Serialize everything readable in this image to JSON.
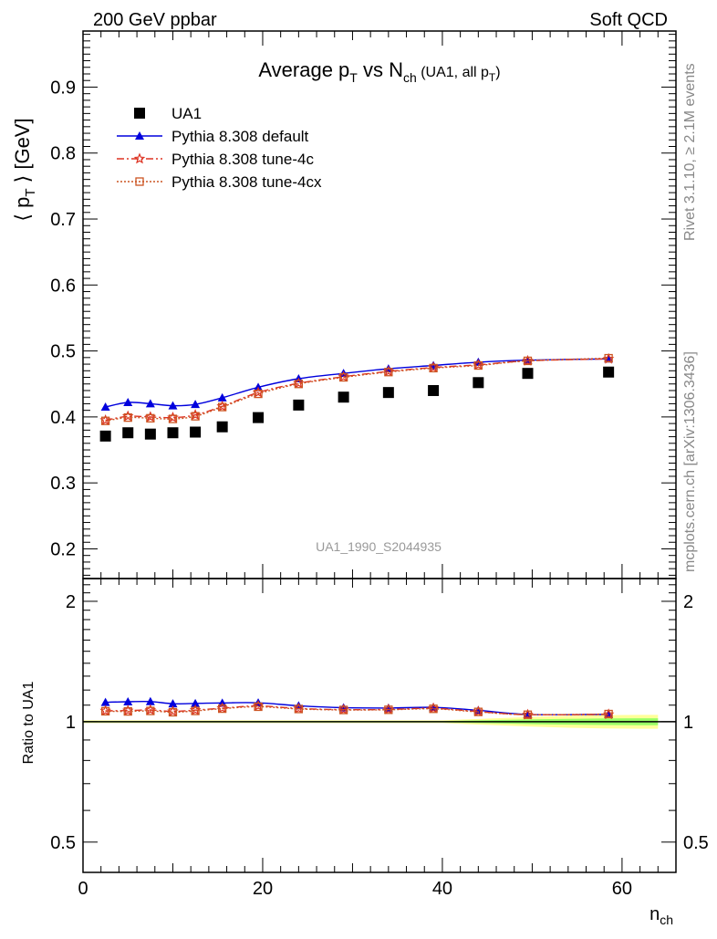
{
  "header": {
    "left": "200 GeV ppbar",
    "right": "Soft QCD"
  },
  "side_text": {
    "rivet": "Rivet 3.1.10, ≥ 2.1M events",
    "mcplots": "mcplots.cern.ch [arXiv:1306.3436]"
  },
  "watermark": "UA1_1990_S2044935",
  "chart_data": [
    {
      "type": "scatter",
      "panel": "main",
      "title_parts": [
        "Average p",
        "T",
        " vs N",
        "ch",
        " (UA1, all p",
        "T",
        ")"
      ],
      "ylabel_parts": [
        "⟨ p",
        "T",
        " ⟩ [GeV]"
      ],
      "xlim": [
        0,
        66
      ],
      "ylim": [
        0.155,
        0.985
      ],
      "yticks": [
        0.2,
        0.3,
        0.4,
        0.5,
        0.6,
        0.7,
        0.8,
        0.9
      ],
      "ytick_labels": [
        "0.2",
        "0.3",
        "0.4",
        "0.5",
        "0.6",
        "0.7",
        "0.8",
        "0.9"
      ],
      "legend_position": "top-left",
      "series": [
        {
          "name": "UA1",
          "kind": "data",
          "color": "#000000",
          "marker": "square",
          "x": [
            2.5,
            5.0,
            7.5,
            10.0,
            12.5,
            15.5,
            19.5,
            24.0,
            29.0,
            34.0,
            39.0,
            44.0,
            49.5,
            58.5
          ],
          "y": [
            0.371,
            0.376,
            0.374,
            0.376,
            0.377,
            0.385,
            0.399,
            0.418,
            0.43,
            0.437,
            0.44,
            0.452,
            0.466,
            0.468
          ]
        },
        {
          "name": "Pythia 8.308 default",
          "kind": "mc",
          "color": "#0000dd",
          "marker": "triangle",
          "x": [
            2.5,
            5.0,
            7.5,
            10.0,
            12.5,
            15.5,
            19.5,
            24.0,
            29.0,
            34.0,
            39.0,
            44.0,
            49.5,
            58.5
          ],
          "y": [
            0.415,
            0.422,
            0.42,
            0.417,
            0.419,
            0.429,
            0.445,
            0.458,
            0.466,
            0.473,
            0.478,
            0.483,
            0.486,
            0.488
          ]
        },
        {
          "name": "Pythia 8.308 tune-4c",
          "kind": "mc",
          "color": "#dd3322",
          "marker": "star",
          "x": [
            2.5,
            5.0,
            7.5,
            10.0,
            12.5,
            15.5,
            19.5,
            24.0,
            29.0,
            34.0,
            39.0,
            44.0,
            49.5,
            58.5
          ],
          "y": [
            0.395,
            0.401,
            0.4,
            0.399,
            0.403,
            0.416,
            0.437,
            0.451,
            0.461,
            0.469,
            0.475,
            0.479,
            0.485,
            0.488
          ]
        },
        {
          "name": "Pythia 8.308 tune-4cx",
          "kind": "mc",
          "color": "#cc5522",
          "marker": "open-square",
          "x": [
            2.5,
            5.0,
            7.5,
            10.0,
            12.5,
            15.5,
            19.5,
            24.0,
            29.0,
            34.0,
            39.0,
            44.0,
            49.5,
            58.5
          ],
          "y": [
            0.394,
            0.399,
            0.398,
            0.397,
            0.401,
            0.415,
            0.435,
            0.45,
            0.46,
            0.468,
            0.474,
            0.478,
            0.485,
            0.489
          ]
        }
      ]
    },
    {
      "type": "line",
      "panel": "ratio",
      "ylabel": "Ratio to UA1",
      "xlabel_parts": [
        "n",
        "ch"
      ],
      "xlim": [
        0,
        66
      ],
      "ylim": [
        0.42,
        2.28
      ],
      "yticks": [
        0.5,
        1,
        2
      ],
      "ytick_labels": [
        "0.5",
        "1",
        "2"
      ],
      "xticks": [
        0,
        20,
        40,
        60
      ],
      "xtick_labels": [
        "0",
        "20",
        "40",
        "60"
      ],
      "band_color_outer": "#ffff99",
      "band_color_inner": "#99ff66",
      "reference_line_color": "#000000",
      "series": [
        {
          "name": "Pythia 8.308 default",
          "color": "#0000dd",
          "marker": "triangle",
          "x": [
            2.5,
            5.0,
            7.5,
            10.0,
            12.5,
            15.5,
            19.5,
            24.0,
            29.0,
            34.0,
            39.0,
            44.0,
            49.5,
            58.5
          ],
          "y": [
            1.118,
            1.122,
            1.123,
            1.109,
            1.111,
            1.114,
            1.115,
            1.096,
            1.084,
            1.082,
            1.086,
            1.068,
            1.043,
            1.043
          ]
        },
        {
          "name": "Pythia 8.308 tune-4c",
          "color": "#dd3322",
          "marker": "star",
          "x": [
            2.5,
            5.0,
            7.5,
            10.0,
            12.5,
            15.5,
            19.5,
            24.0,
            29.0,
            34.0,
            39.0,
            44.0,
            49.5,
            58.5
          ],
          "y": [
            1.065,
            1.066,
            1.07,
            1.061,
            1.069,
            1.081,
            1.095,
            1.079,
            1.072,
            1.073,
            1.08,
            1.06,
            1.041,
            1.043
          ]
        },
        {
          "name": "Pythia 8.308 tune-4cx",
          "color": "#cc5522",
          "marker": "open-square",
          "x": [
            2.5,
            5.0,
            7.5,
            10.0,
            12.5,
            15.5,
            19.5,
            24.0,
            29.0,
            34.0,
            39.0,
            44.0,
            49.5,
            58.5
          ],
          "y": [
            1.062,
            1.061,
            1.064,
            1.056,
            1.064,
            1.078,
            1.09,
            1.076,
            1.07,
            1.071,
            1.077,
            1.058,
            1.041,
            1.045
          ]
        }
      ],
      "data_band": {
        "x": [
          0,
          5,
          10,
          15,
          20,
          25,
          30,
          35,
          40,
          42,
          46,
          50,
          54,
          58,
          62,
          64
        ],
        "outer_half_width": [
          0.008,
          0.008,
          0.008,
          0.008,
          0.008,
          0.008,
          0.008,
          0.008,
          0.008,
          0.012,
          0.02,
          0.028,
          0.034,
          0.038,
          0.04,
          0.04
        ],
        "inner_half_width": [
          0.004,
          0.004,
          0.004,
          0.004,
          0.004,
          0.004,
          0.004,
          0.004,
          0.004,
          0.006,
          0.01,
          0.014,
          0.017,
          0.019,
          0.02,
          0.02
        ]
      }
    }
  ]
}
